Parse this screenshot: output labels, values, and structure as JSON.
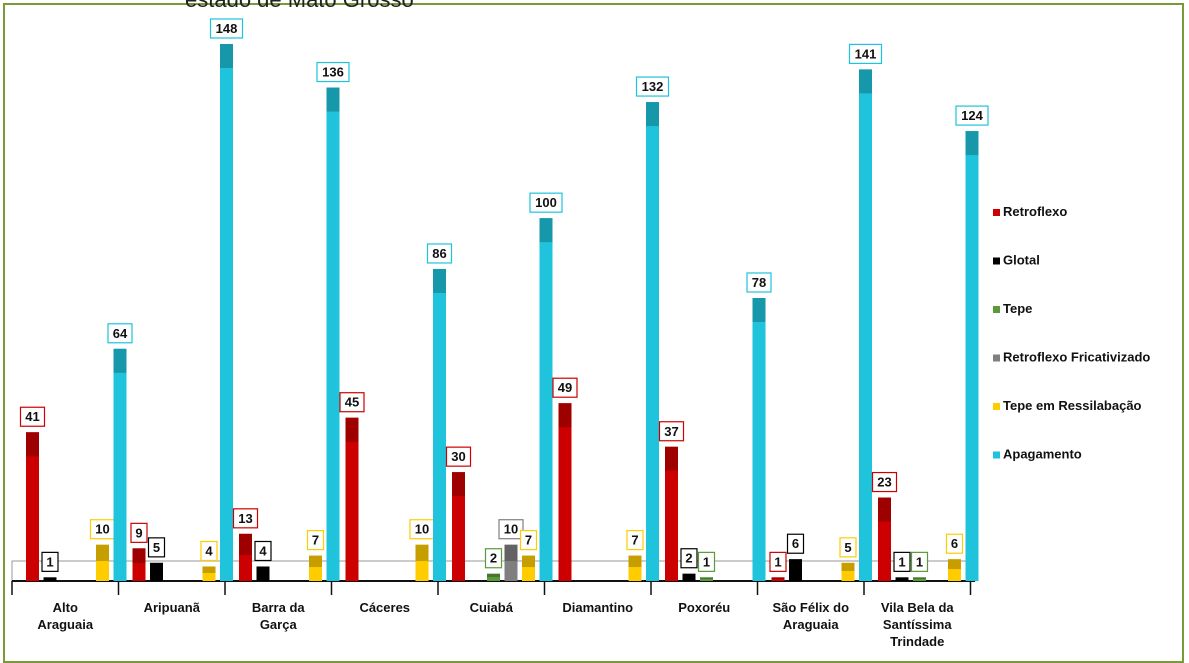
{
  "chart_data": {
    "type": "bar",
    "title": "estado de Mato Grosso",
    "categories": [
      [
        "Alto",
        "Araguaia"
      ],
      [
        "Aripuanã"
      ],
      [
        "Barra da",
        "Garça"
      ],
      [
        "Cáceres"
      ],
      [
        "Cuiabá"
      ],
      [
        "Diamantino"
      ],
      [
        "Poxoréu"
      ],
      [
        "São Félix do",
        "Araguaia"
      ],
      [
        "Vila Bela da",
        "Santíssima",
        "Trindade"
      ]
    ],
    "series": [
      {
        "name": "Retroflexo",
        "color": "#cc0000",
        "values": [
          41,
          9,
          13,
          45,
          30,
          49,
          37,
          1,
          23
        ]
      },
      {
        "name": "Glotal",
        "color": "#000000",
        "values": [
          1,
          5,
          4,
          0,
          0,
          0,
          2,
          6,
          1
        ]
      },
      {
        "name": "Tepe",
        "color": "#5a9a3a",
        "values": [
          0,
          0,
          0,
          0,
          2,
          0,
          1,
          0,
          1
        ]
      },
      {
        "name": "Retroflexo Fricativizado",
        "color": "#7f7f7f",
        "values": [
          0,
          0,
          0,
          0,
          10,
          0,
          0,
          0,
          0
        ]
      },
      {
        "name": "Tepe em Ressilabação",
        "color": "#ffcc00",
        "values": [
          10,
          4,
          7,
          10,
          7,
          7,
          0,
          5,
          6
        ]
      },
      {
        "name": "Apagamento",
        "color": "#1fc3dc",
        "values": [
          64,
          148,
          136,
          86,
          100,
          132,
          78,
          141,
          124
        ]
      }
    ],
    "label_box_colors": [
      "#cc0000",
      "#000000",
      "#5a9a3a",
      "#7f7f7f",
      "#ffcc00",
      "#1fc3dc"
    ],
    "ylim": [
      0,
      155
    ],
    "grid": false,
    "legend_position": "right"
  }
}
